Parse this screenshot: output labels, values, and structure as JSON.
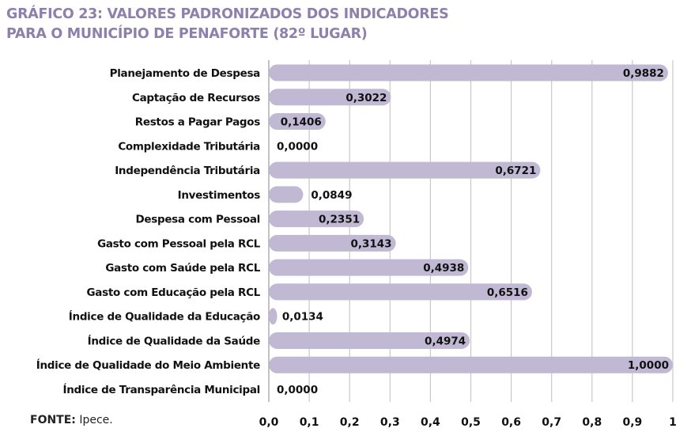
{
  "title_lines": [
    "GRÁFICO 23: VALORES PADRONIZADOS DOS INDICADORES",
    "PARA O MUNICÍPIO DE PENAFORTE (82º LUGAR)"
  ],
  "source": {
    "label": "FONTE:",
    "text": " Ipece."
  },
  "chart_data": {
    "type": "bar",
    "orientation": "horizontal",
    "title": "GRÁFICO 23: VALORES PADRONIZADOS DOS INDICADORES PARA O MUNICÍPIO DE PENAFORTE (82º LUGAR)",
    "categories": [
      "Planejamento de Despesa",
      "Captação de Recursos",
      "Restos a Pagar Pagos",
      "Complexidade Tributária",
      "Independência Tributária",
      "Investimentos",
      "Despesa com Pessoal",
      "Gasto com Pessoal pela RCL",
      "Gasto com Saúde pela RCL",
      "Gasto com Educação pela RCL",
      "Índice de Qualidade da Educação",
      "Índice de Qualidade da Saúde",
      "Índice de Qualidade do Meio Ambiente",
      "Índice de Transparência Municipal"
    ],
    "values": [
      0.9882,
      0.3022,
      0.1406,
      0.0,
      0.6721,
      0.0849,
      0.2351,
      0.3143,
      0.4938,
      0.6516,
      0.0134,
      0.4974,
      1.0,
      0.0
    ],
    "data_labels": [
      "0,9882",
      "0,3022",
      "0,1406",
      "0,0000",
      "0,6721",
      "0,0849",
      "0,2351",
      "0,3143",
      "0,4938",
      "0,6516",
      "0,0134",
      "0,4974",
      "1,0000",
      "0,0000"
    ],
    "xlim": [
      0,
      1
    ],
    "x_ticks": [
      "0,0",
      "0,1",
      "0,2",
      "0,3",
      "0,4",
      "0,5",
      "0,6",
      "0,7",
      "0,8",
      "0,9",
      "1"
    ],
    "grid": true,
    "bar_color": "#c1b9d4",
    "title_color": "#8d80ab"
  }
}
